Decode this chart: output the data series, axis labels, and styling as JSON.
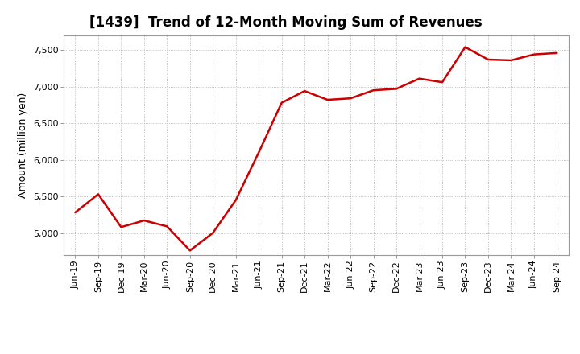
{
  "title": "[1439]  Trend of 12-Month Moving Sum of Revenues",
  "ylabel": "Amount (million yen)",
  "line_color": "#cc0000",
  "bg_color": "#ffffff",
  "plot_bg_color": "#ffffff",
  "grid_color": "#aaaaaa",
  "ylim": [
    4700,
    7700
  ],
  "yticks": [
    5000,
    5500,
    6000,
    6500,
    7000,
    7500
  ],
  "dates": [
    "Jun-19",
    "Sep-19",
    "Dec-19",
    "Mar-20",
    "Jun-20",
    "Sep-20",
    "Dec-20",
    "Mar-21",
    "Jun-21",
    "Sep-21",
    "Dec-21",
    "Mar-22",
    "Jun-22",
    "Sep-22",
    "Dec-22",
    "Mar-23",
    "Jun-23",
    "Sep-23",
    "Dec-23",
    "Mar-24",
    "Jun-24",
    "Sep-24"
  ],
  "values": [
    5280,
    5530,
    5080,
    5170,
    5090,
    4760,
    5000,
    5450,
    6100,
    6780,
    6940,
    6820,
    6840,
    6950,
    6970,
    7110,
    7060,
    7540,
    7370,
    7360,
    7440,
    7460
  ],
  "title_fontsize": 12,
  "tick_fontsize": 8,
  "ylabel_fontsize": 9
}
